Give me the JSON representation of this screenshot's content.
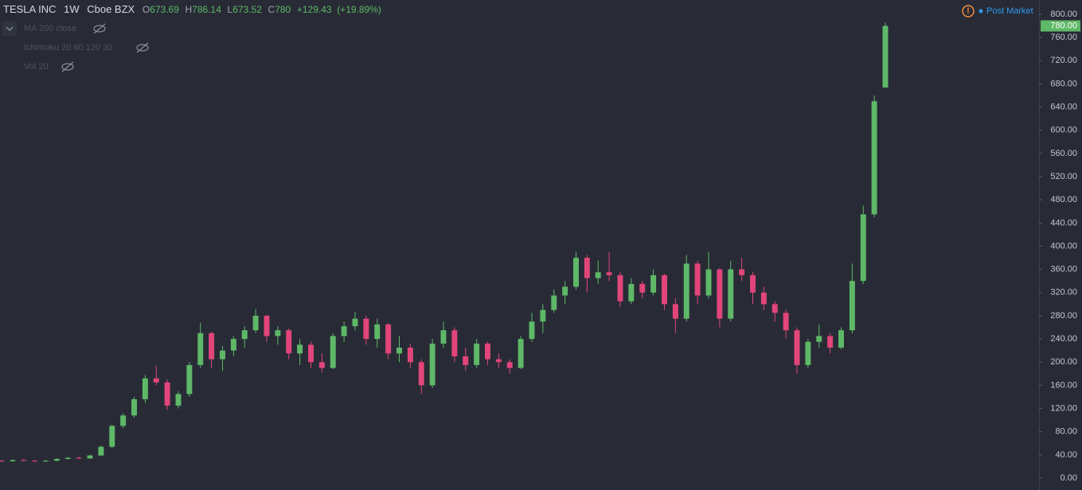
{
  "chart_data": {
    "type": "candlestick",
    "symbol": "TESLA INC",
    "interval": "1W",
    "exchange": "Cboe BZX",
    "ohlc_letters": [
      "O",
      "H",
      "L",
      "C"
    ],
    "change": "+129.43",
    "change_pct": "(+19.89%)",
    "session": "Post Market",
    "indicators": [
      "MA 200 close",
      "Ichimoku 20 60 120 30",
      "Vol 20"
    ],
    "up_color": "#5fb868",
    "down_color": "#e2457a",
    "price_label": {
      "value": 780,
      "label": "780.00"
    },
    "ylim": [
      0,
      800
    ],
    "yticks": [
      {
        "value": 0,
        "label": "0.00"
      },
      {
        "value": 40,
        "label": "40.00"
      },
      {
        "value": 80,
        "label": "80.00"
      },
      {
        "value": 120,
        "label": "120.00"
      },
      {
        "value": 160,
        "label": "160.00"
      },
      {
        "value": 200,
        "label": "200.00"
      },
      {
        "value": 240,
        "label": "240.00"
      },
      {
        "value": 280,
        "label": "280.00"
      },
      {
        "value": 320,
        "label": "320.00"
      },
      {
        "value": 360,
        "label": "360.00"
      },
      {
        "value": 400,
        "label": "400.00"
      },
      {
        "value": 440,
        "label": "440.00"
      },
      {
        "value": 480,
        "label": "480.00"
      },
      {
        "value": 520,
        "label": "520.00"
      },
      {
        "value": 560,
        "label": "560.00"
      },
      {
        "value": 600,
        "label": "600.00"
      },
      {
        "value": 640,
        "label": "640.00"
      },
      {
        "value": 680,
        "label": "680.00"
      },
      {
        "value": 720,
        "label": "720.00"
      },
      {
        "value": 760,
        "label": "760.00"
      },
      {
        "value": 800,
        "label": "800.00"
      }
    ],
    "open": [
      30,
      29,
      31,
      30,
      29,
      30,
      33,
      35,
      34,
      39,
      54,
      90,
      108,
      136,
      172,
      165,
      125,
      145,
      195,
      250,
      205,
      220,
      240,
      255,
      280,
      245,
      255,
      215,
      230,
      200,
      190,
      245,
      262,
      275,
      240,
      265,
      215,
      225,
      200,
      160,
      232,
      255,
      210,
      195,
      232,
      205,
      200,
      190,
      240,
      270,
      290,
      315,
      330,
      380,
      345,
      355,
      350,
      305,
      335,
      320,
      350,
      300,
      275,
      370,
      315,
      360,
      275,
      360,
      350,
      320,
      300,
      285,
      255,
      195,
      235,
      245,
      225,
      255,
      340,
      455,
      673.69
    ],
    "high": [
      31,
      32,
      33,
      31,
      31,
      34,
      36,
      37,
      40,
      56,
      92,
      112,
      140,
      178,
      194,
      170,
      150,
      200,
      268,
      252,
      228,
      245,
      262,
      292,
      282,
      262,
      258,
      240,
      235,
      215,
      250,
      270,
      287,
      280,
      275,
      268,
      245,
      232,
      205,
      240,
      270,
      260,
      225,
      240,
      235,
      215,
      205,
      245,
      285,
      300,
      325,
      340,
      390,
      385,
      375,
      390,
      355,
      345,
      340,
      360,
      352,
      310,
      385,
      375,
      390,
      362,
      375,
      380,
      355,
      330,
      305,
      290,
      260,
      240,
      265,
      250,
      260,
      370,
      470,
      660,
      786.14
    ],
    "low": [
      28,
      28,
      29,
      28,
      28,
      29,
      32,
      33,
      33,
      38,
      52,
      86,
      104,
      130,
      160,
      118,
      120,
      140,
      190,
      190,
      185,
      210,
      225,
      250,
      235,
      230,
      205,
      195,
      190,
      182,
      188,
      235,
      255,
      230,
      225,
      205,
      200,
      190,
      145,
      155,
      225,
      200,
      185,
      190,
      195,
      190,
      180,
      188,
      235,
      250,
      285,
      300,
      325,
      320,
      335,
      340,
      295,
      300,
      310,
      315,
      290,
      250,
      270,
      300,
      310,
      260,
      270,
      340,
      300,
      290,
      270,
      240,
      180,
      190,
      225,
      215,
      222,
      250,
      335,
      450,
      673.52
    ],
    "close": [
      29,
      31,
      30,
      29,
      30,
      33,
      35,
      34,
      39,
      54,
      90,
      108,
      136,
      172,
      165,
      125,
      145,
      195,
      250,
      205,
      220,
      240,
      255,
      280,
      245,
      255,
      215,
      230,
      200,
      190,
      245,
      262,
      275,
      240,
      265,
      215,
      225,
      200,
      160,
      232,
      255,
      210,
      195,
      232,
      205,
      200,
      190,
      240,
      270,
      290,
      315,
      330,
      380,
      345,
      355,
      350,
      305,
      335,
      320,
      350,
      300,
      275,
      370,
      315,
      360,
      275,
      360,
      350,
      320,
      300,
      285,
      255,
      195,
      235,
      245,
      225,
      255,
      340,
      455,
      650,
      780.0
    ]
  }
}
